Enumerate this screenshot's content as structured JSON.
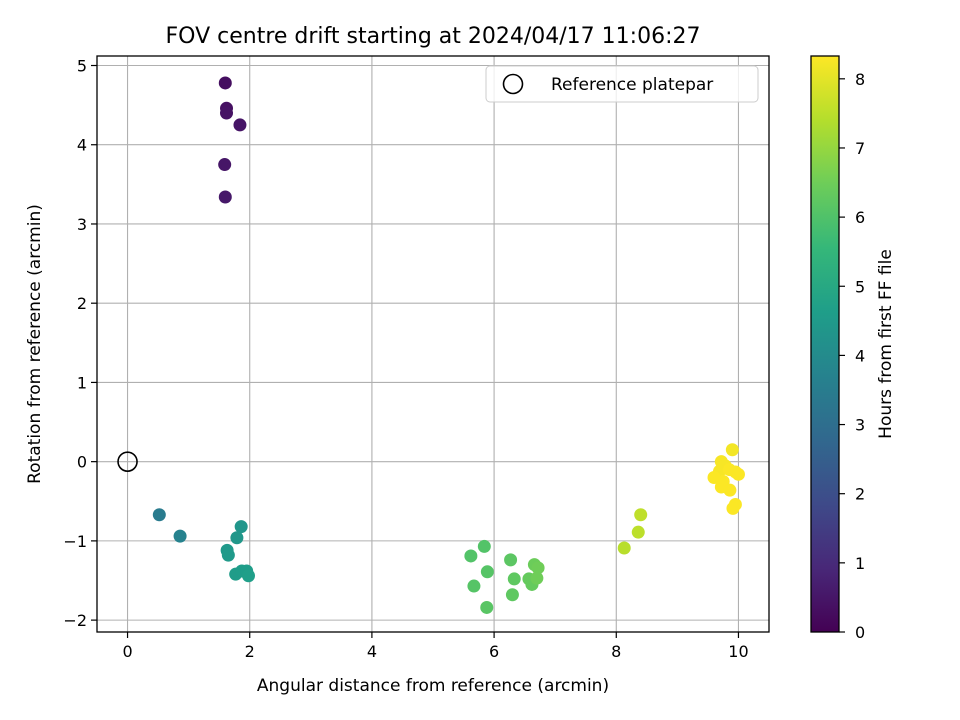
{
  "chart_data": {
    "type": "scatter",
    "title": "FOV centre drift starting at 2024/04/17 11:06:27",
    "xlabel": "Angular distance from reference (arcmin)",
    "ylabel": "Rotation from reference (arcmin)",
    "xlim": [
      -0.5,
      10.5
    ],
    "ylim": [
      -2.15,
      5.12
    ],
    "xticks": [
      0,
      2,
      4,
      6,
      8,
      10
    ],
    "yticks": [
      -2,
      -1,
      0,
      1,
      2,
      3,
      4,
      5
    ],
    "xtick_labels": [
      "0",
      "2",
      "4",
      "6",
      "8",
      "10"
    ],
    "ytick_labels": [
      "−2",
      "−1",
      "0",
      "1",
      "2",
      "3",
      "4",
      "5"
    ],
    "grid": true,
    "legend": {
      "placement": "top-right",
      "entries": [
        "Reference platepar"
      ]
    },
    "reference": {
      "name": "Reference platepar",
      "x": 0,
      "y": 0
    },
    "colorbar": {
      "label": "Hours from first FF file",
      "range": [
        0,
        8.33
      ],
      "ticks": [
        0,
        1,
        2,
        3,
        4,
        5,
        6,
        7,
        8
      ],
      "tick_labels": [
        "0",
        "1",
        "2",
        "3",
        "4",
        "5",
        "6",
        "7",
        "8"
      ],
      "colormap": "viridis"
    },
    "points": [
      {
        "x": 1.6,
        "y": 4.78,
        "c": 0.3
      },
      {
        "x": 1.62,
        "y": 4.46,
        "c": 0.35
      },
      {
        "x": 1.62,
        "y": 4.4,
        "c": 0.4
      },
      {
        "x": 1.84,
        "y": 4.25,
        "c": 0.45
      },
      {
        "x": 1.59,
        "y": 3.75,
        "c": 0.5
      },
      {
        "x": 1.6,
        "y": 3.34,
        "c": 0.55
      },
      {
        "x": 0.52,
        "y": -0.67,
        "c": 3.45
      },
      {
        "x": 0.86,
        "y": -0.94,
        "c": 3.7
      },
      {
        "x": 1.86,
        "y": -0.82,
        "c": 4.35
      },
      {
        "x": 1.79,
        "y": -0.96,
        "c": 4.4
      },
      {
        "x": 1.63,
        "y": -1.12,
        "c": 4.45
      },
      {
        "x": 1.65,
        "y": -1.18,
        "c": 4.5
      },
      {
        "x": 1.77,
        "y": -1.42,
        "c": 4.55
      },
      {
        "x": 1.87,
        "y": -1.38,
        "c": 4.6
      },
      {
        "x": 1.95,
        "y": -1.38,
        "c": 4.6
      },
      {
        "x": 1.98,
        "y": -1.44,
        "c": 4.65
      },
      {
        "x": 5.62,
        "y": -1.19,
        "c": 6.05
      },
      {
        "x": 5.84,
        "y": -1.07,
        "c": 6.05
      },
      {
        "x": 5.89,
        "y": -1.39,
        "c": 6.1
      },
      {
        "x": 5.67,
        "y": -1.57,
        "c": 6.1
      },
      {
        "x": 5.88,
        "y": -1.84,
        "c": 6.15
      },
      {
        "x": 6.27,
        "y": -1.24,
        "c": 6.2
      },
      {
        "x": 6.33,
        "y": -1.48,
        "c": 6.25
      },
      {
        "x": 6.3,
        "y": -1.68,
        "c": 6.25
      },
      {
        "x": 6.57,
        "y": -1.48,
        "c": 6.35
      },
      {
        "x": 6.62,
        "y": -1.55,
        "c": 6.35
      },
      {
        "x": 6.66,
        "y": -1.3,
        "c": 6.45
      },
      {
        "x": 6.72,
        "y": -1.34,
        "c": 6.5
      },
      {
        "x": 6.7,
        "y": -1.47,
        "c": 6.5
      },
      {
        "x": 8.13,
        "y": -1.09,
        "c": 7.45
      },
      {
        "x": 8.36,
        "y": -0.89,
        "c": 7.5
      },
      {
        "x": 8.4,
        "y": -0.67,
        "c": 7.55
      },
      {
        "x": 9.9,
        "y": 0.15,
        "c": 8.2
      },
      {
        "x": 9.72,
        "y": 0.0,
        "c": 8.25
      },
      {
        "x": 9.78,
        "y": -0.05,
        "c": 8.25
      },
      {
        "x": 9.69,
        "y": -0.12,
        "c": 8.25
      },
      {
        "x": 9.85,
        "y": -0.1,
        "c": 8.3
      },
      {
        "x": 9.95,
        "y": -0.13,
        "c": 8.3
      },
      {
        "x": 10.0,
        "y": -0.16,
        "c": 8.3
      },
      {
        "x": 9.6,
        "y": -0.2,
        "c": 8.3
      },
      {
        "x": 9.75,
        "y": -0.25,
        "c": 8.3
      },
      {
        "x": 9.72,
        "y": -0.32,
        "c": 8.3
      },
      {
        "x": 9.86,
        "y": -0.36,
        "c": 8.3
      },
      {
        "x": 9.95,
        "y": -0.54,
        "c": 8.3
      },
      {
        "x": 9.91,
        "y": -0.59,
        "c": 8.3
      }
    ]
  }
}
